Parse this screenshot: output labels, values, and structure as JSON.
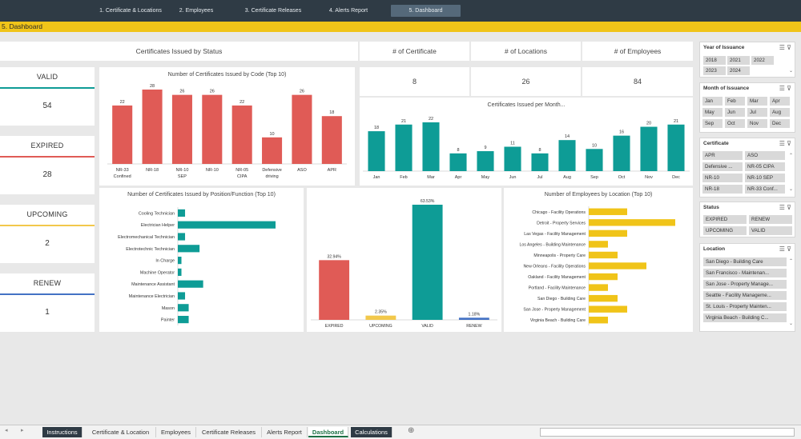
{
  "nav": {
    "buttons": [
      "1. Certificate & Locations",
      "2. Employees",
      "3. Certificate Releases",
      "4. Alerts Report",
      "5. Dashboard"
    ]
  },
  "title": "5. Dashboard",
  "headers": {
    "status": "Certificates Issued by Status",
    "kpi1": "# of Certificate",
    "kpi2": "# of Locations",
    "kpi3": "# of Employees"
  },
  "kpis": {
    "certificates": "8",
    "locations": "26",
    "employees": "84"
  },
  "status_cards": [
    {
      "label": "VALID",
      "value": "54",
      "color": "#0e9c96"
    },
    {
      "label": "EXPIRED",
      "value": "28",
      "color": "#e05b56"
    },
    {
      "label": "UPCOMING",
      "value": "2",
      "color": "#f2c84b"
    },
    {
      "label": "RENEW",
      "value": "1",
      "color": "#4472c4"
    }
  ],
  "chart_data": [
    {
      "type": "bar",
      "title": "Number of Certificates Issued by Code (Top 10)",
      "categories": [
        "NR-33 Confined",
        "NR-18",
        "NR-10 SEP",
        "NR-10",
        "NR-05 CIPA",
        "Defensive driving",
        "ASO",
        "APR"
      ],
      "values": [
        22,
        28,
        26,
        26,
        22,
        10,
        26,
        18
      ],
      "color": "#e05b56"
    },
    {
      "type": "bar",
      "title": "Certificates Issued per Month...",
      "categories": [
        "Jan",
        "Feb",
        "Mar",
        "Apr",
        "May",
        "Jun",
        "Jul",
        "Aug",
        "Sep",
        "Oct",
        "Nov",
        "Dec"
      ],
      "values": [
        18,
        21,
        22,
        8,
        9,
        11,
        8,
        14,
        10,
        16,
        20,
        21
      ],
      "color": "#0e9c96"
    },
    {
      "type": "bar",
      "orientation": "horizontal",
      "title": "Number of Certificates Issued by Position/Function (Top 10)",
      "categories": [
        "Cooling Technician",
        "Electrician Helper",
        "Electromechanical Technician",
        "Electrotechnic Technician",
        "In Charge",
        "Machine Operator",
        "Maintenance Assistant",
        "Maintenance Electrician",
        "Mason",
        "Painter"
      ],
      "values": [
        2,
        27,
        2,
        6,
        1,
        1,
        7,
        2,
        3,
        3
      ],
      "color": "#0e9c96"
    },
    {
      "type": "bar",
      "title": "",
      "categories": [
        "EXPIRED",
        "UPCOMING",
        "VALID",
        "RENEW"
      ],
      "labels": [
        "32.94%",
        "2.35%",
        "63.53%",
        "1.18%"
      ],
      "values": [
        32.94,
        2.35,
        63.53,
        1.18
      ],
      "colors": [
        "#e05b56",
        "#f2c84b",
        "#0e9c96",
        "#4472c4"
      ]
    },
    {
      "type": "bar",
      "orientation": "horizontal",
      "title": "Number of Employees by Location (Top 10)",
      "categories": [
        "Chicago - Facility Operations",
        "Detroit - Property Services",
        "Las Vegas - Facility Management",
        "Los Angeles - Building Maintenance",
        "Minneapolis - Property Care",
        "New Orleans - Facility Operations",
        "Oakland - Facility Management",
        "Portland - Facility Maintenance",
        "San Diego - Building Care",
        "San Jose - Property Management",
        "Virginia Beach - Building Care"
      ],
      "values": [
        4,
        9,
        4,
        2,
        3,
        6,
        3,
        2,
        3,
        4,
        2
      ],
      "color": "#f0c419"
    }
  ],
  "slicers": {
    "year": {
      "title": "Year of Issuance",
      "items": [
        "2018",
        "2021",
        "2022",
        "2023",
        "2024"
      ]
    },
    "month": {
      "title": "Month of Issuance",
      "items": [
        "Jan",
        "Feb",
        "Mar",
        "Apr",
        "May",
        "Jun",
        "Jul",
        "Aug",
        "Sep",
        "Oct",
        "Nov",
        "Dec"
      ]
    },
    "certificate": {
      "title": "Certificate",
      "items": [
        "APR",
        "ASO",
        "Defensive ...",
        "NR-05 CIPA",
        "NR-10",
        "NR-10 SEP",
        "NR-18",
        "NR-33 Conf..."
      ]
    },
    "status": {
      "title": "Status",
      "items": [
        "EXPIRED",
        "RENEW",
        "UPCOMING",
        "VALID"
      ]
    },
    "location": {
      "title": "Location",
      "items": [
        "San Diego - Building Care",
        "San Francisco - Maintenan...",
        "San Jose - Property Manage...",
        "Seattle - Facility Manageme...",
        "St. Louis - Property Mainten...",
        "Virginia Beach - Building C..."
      ]
    }
  },
  "tabs": [
    "Instructions",
    "Certificate & Location",
    "Employees",
    "Certificate Releases",
    "Alerts Report",
    "Dashboard",
    "Calculations"
  ]
}
